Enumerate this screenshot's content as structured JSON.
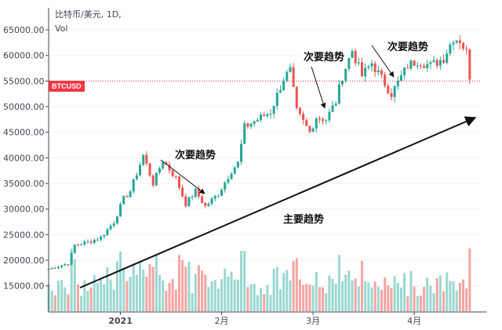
{
  "header": {
    "line1": "比特币/美元, 1D,",
    "line2": "Vol"
  },
  "price_badge": "BTCUSD",
  "annotations": {
    "minor_trend_label": "次要趋势",
    "major_trend_label": "主要趋势"
  },
  "colors": {
    "up": "#26a69a",
    "down": "#ef5350",
    "vol_up": "#9ad8d0",
    "vol_down": "#f3a5a3",
    "price_line": "#f23645",
    "axis": "#434651",
    "grid": "#f0f3fa"
  },
  "chart_data": {
    "type": "candlestick",
    "y_axis": {
      "ticks": [
        15000,
        20000,
        25000,
        30000,
        35000,
        40000,
        45000,
        50000,
        55000,
        60000,
        65000
      ],
      "tick_labels": [
        "15000.00",
        "20000.00",
        "25000.00",
        "30000.00",
        "35000.00",
        "40000.00",
        "45000.00",
        "50000.00",
        "55000.00",
        "60000.00",
        "65000.00"
      ],
      "range": [
        12500,
        67000
      ],
      "position": "left"
    },
    "x_axis": {
      "tick_labels": [
        "2021",
        "2月",
        "3月",
        "4月"
      ],
      "range": [
        "2020-12-10",
        "2021-04-19"
      ]
    },
    "current_price": 55000,
    "price_anchors": [
      [
        "2020-12-10",
        18300
      ],
      [
        "2020-12-16",
        19400
      ],
      [
        "2020-12-18",
        23000
      ],
      [
        "2020-12-22",
        23500
      ],
      [
        "2020-12-26",
        24500
      ],
      [
        "2020-12-30",
        27500
      ],
      [
        "2021-01-02",
        32000
      ],
      [
        "2021-01-04",
        33500
      ],
      [
        "2021-01-08",
        40500
      ],
      [
        "2021-01-11",
        35000
      ],
      [
        "2021-01-14",
        39500
      ],
      [
        "2021-01-18",
        36000
      ],
      [
        "2021-01-21",
        31000
      ],
      [
        "2021-01-24",
        33500
      ],
      [
        "2021-01-27",
        30500
      ],
      [
        "2021-01-31",
        33000
      ],
      [
        "2021-02-04",
        37500
      ],
      [
        "2021-02-06",
        39000
      ],
      [
        "2021-02-08",
        46000
      ],
      [
        "2021-02-12",
        47500
      ],
      [
        "2021-02-16",
        49000
      ],
      [
        "2021-02-20",
        55500
      ],
      [
        "2021-02-22",
        57000
      ],
      [
        "2021-02-24",
        49000
      ],
      [
        "2021-02-28",
        45000
      ],
      [
        "2021-03-02",
        48000
      ],
      [
        "2021-03-05",
        47500
      ],
      [
        "2021-03-08",
        51000
      ],
      [
        "2021-03-10",
        56000
      ],
      [
        "2021-03-13",
        61000
      ],
      [
        "2021-03-16",
        56000
      ],
      [
        "2021-03-19",
        58500
      ],
      [
        "2021-03-23",
        54500
      ],
      [
        "2021-03-25",
        52500
      ],
      [
        "2021-03-30",
        58000
      ],
      [
        "2021-04-02",
        59000
      ],
      [
        "2021-04-06",
        58000
      ],
      [
        "2021-04-10",
        59500
      ],
      [
        "2021-04-13",
        63500
      ],
      [
        "2021-04-15",
        63000
      ],
      [
        "2021-04-17",
        60500
      ],
      [
        "2021-04-18",
        56000
      ]
    ],
    "volume_range": [
      0,
      12000
    ],
    "series": [
      {
        "name": "主要趋势",
        "type": "trendline",
        "points": [
          [
            "2020-12-20",
            17600
          ],
          [
            "2021-04-18",
            49000
          ]
        ]
      }
    ]
  }
}
